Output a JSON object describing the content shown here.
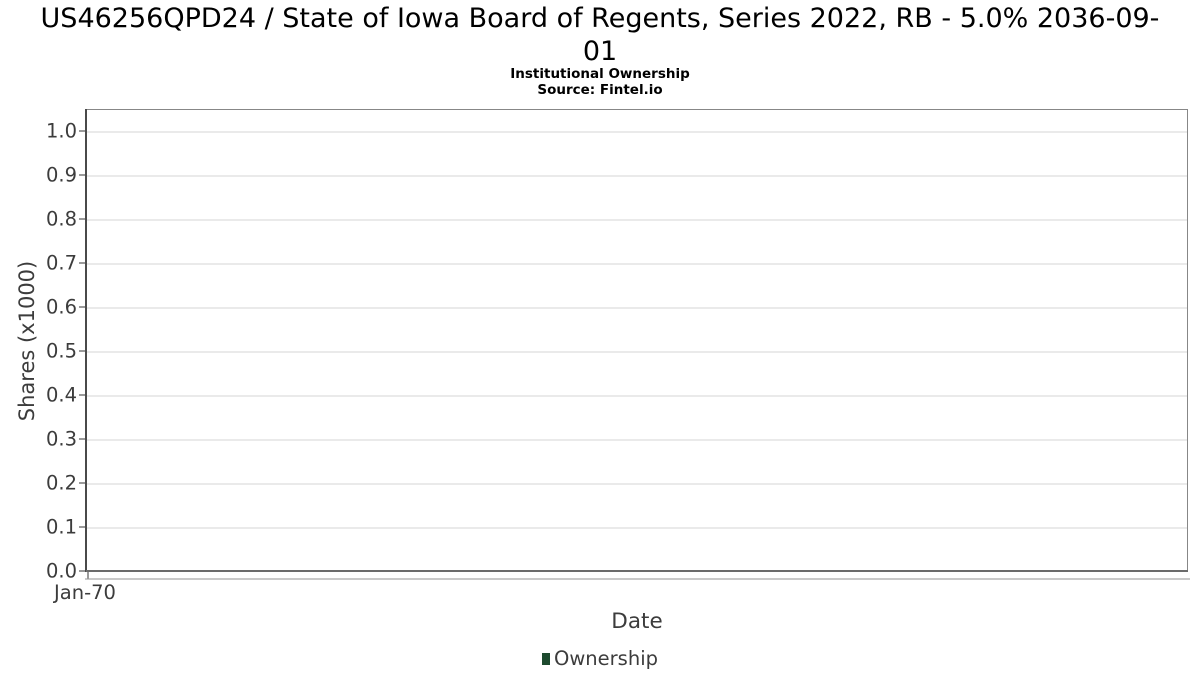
{
  "header": {
    "title_lines": [
      "US46256QPD24 / State of Iowa Board of Regents, Series 2022, RB - 5.0% 2036-09-",
      "01"
    ],
    "subtitle": "Institutional Ownership",
    "source": "Source: Fintel.io"
  },
  "chart_data": {
    "type": "bar",
    "title": "US46256QPD24 / State of Iowa Board of Regents, Series 2022, RB - 5.0% 2036-09-01",
    "subtitle": "Institutional Ownership",
    "source": "Source: Fintel.io",
    "xlabel": "Date",
    "ylabel": "Shares (x1000)",
    "xticks": [
      "Jan-70"
    ],
    "yticks": [
      "1.0",
      "0.9",
      "0.8",
      "0.7",
      "0.6",
      "0.5",
      "0.4",
      "0.3",
      "0.2",
      "0.1",
      "0.0"
    ],
    "ylim": [
      0.0,
      1.04
    ],
    "grid": "horizontal",
    "legend_position": "bottom-center",
    "legend": [
      {
        "label": "Ownership",
        "color": "#1d4a2e"
      }
    ],
    "series": [
      {
        "name": "Ownership",
        "x": [],
        "values": []
      }
    ]
  },
  "colors": {
    "series_green": "#1d4a2e",
    "axis_text": "#3c3c3c",
    "gridline": "#eaeaea",
    "plot_border": "#878787"
  }
}
